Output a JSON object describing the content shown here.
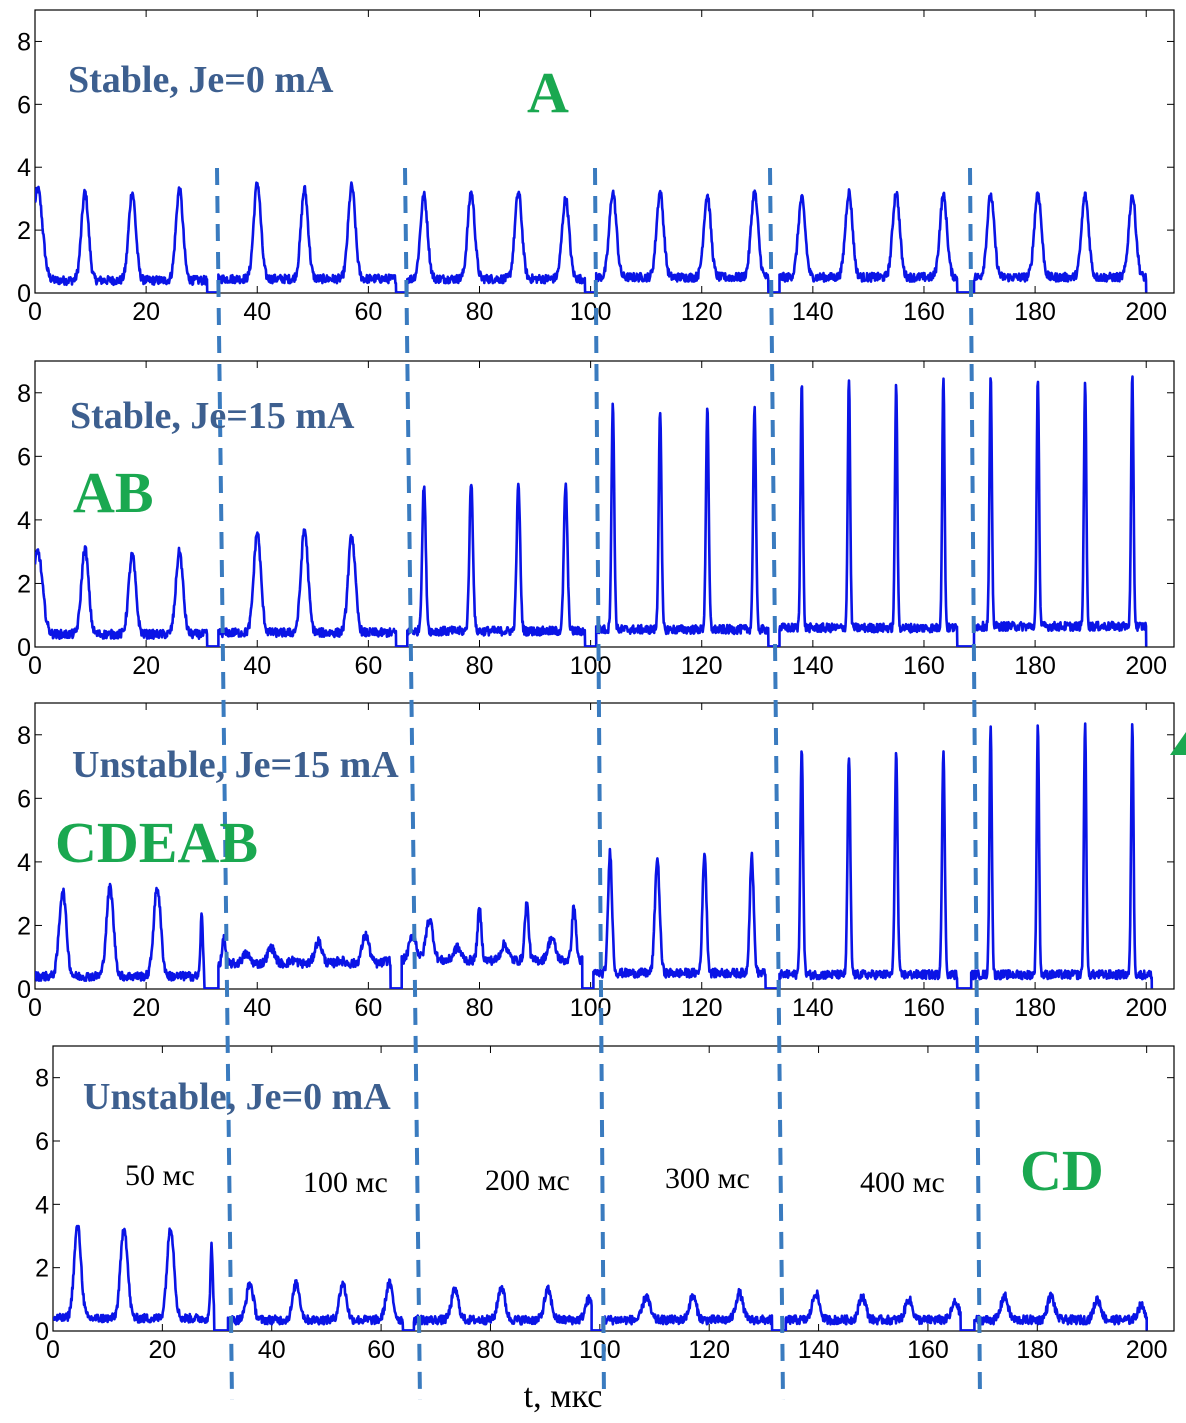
{
  "chart_data": {
    "type": "line",
    "xlabel": "t, мкс",
    "xlim": [
      0,
      205
    ],
    "ylim": [
      0,
      9
    ],
    "xticks": [
      0,
      20,
      40,
      60,
      80,
      100,
      120,
      140,
      160,
      180,
      200
    ],
    "yticks": [
      0,
      2,
      4,
      6,
      8
    ],
    "line_color": "#0a14e6",
    "divider_color": "#3a7bbf",
    "title_color": "#3d5f8f",
    "mark_color": "#1aa850",
    "segment_gaps": [
      32,
      66,
      100,
      133,
      168
    ],
    "time_labels": [
      "50 мс",
      "100 мс",
      "200 мс",
      "300 мс",
      "400 мс"
    ],
    "panels": [
      {
        "title": "Stable, Je=0 mA",
        "mark": "A",
        "series": [
          {
            "segments": [
              {
                "range": [
                  0,
                  31
                ],
                "baseline": 0.4,
                "spikes": [
                  {
                    "t": 0.5,
                    "h": 3.3,
                    "w": 1.2
                  },
                  {
                    "t": 9,
                    "h": 3.2
                  },
                  {
                    "t": 17.5,
                    "h": 3.2
                  },
                  {
                    "t": 26,
                    "h": 3.3
                  }
                ]
              },
              {
                "range": [
                  33,
                  65
                ],
                "baseline": 0.45,
                "spikes": [
                  {
                    "t": 40,
                    "h": 3.5
                  },
                  {
                    "t": 48.5,
                    "h": 3.3
                  },
                  {
                    "t": 57,
                    "h": 3.4
                  }
                ]
              },
              {
                "range": [
                  67,
                  99
                ],
                "baseline": 0.45,
                "spikes": [
                  {
                    "t": 70,
                    "h": 3.1
                  },
                  {
                    "t": 78.5,
                    "h": 3.2
                  },
                  {
                    "t": 87,
                    "h": 3.2
                  },
                  {
                    "t": 95.5,
                    "h": 3.0
                  }
                ]
              },
              {
                "range": [
                  101,
                  132
                ],
                "baseline": 0.5,
                "spikes": [
                  {
                    "t": 104,
                    "h": 3.2
                  },
                  {
                    "t": 112.5,
                    "h": 3.2
                  },
                  {
                    "t": 121,
                    "h": 3.1
                  },
                  {
                    "t": 129.5,
                    "h": 3.2
                  }
                ]
              },
              {
                "range": [
                  134,
                  166
                ],
                "baseline": 0.5,
                "spikes": [
                  {
                    "t": 138,
                    "h": 3.0
                  },
                  {
                    "t": 146.5,
                    "h": 3.2
                  },
                  {
                    "t": 155,
                    "h": 3.2
                  },
                  {
                    "t": 163.5,
                    "h": 3.1
                  }
                ]
              },
              {
                "range": [
                  169,
                  200
                ],
                "baseline": 0.5,
                "spikes": [
                  {
                    "t": 172,
                    "h": 3.1
                  },
                  {
                    "t": 180.5,
                    "h": 3.2
                  },
                  {
                    "t": 189,
                    "h": 3.1
                  },
                  {
                    "t": 197.5,
                    "h": 3.1
                  }
                ]
              }
            ]
          }
        ]
      },
      {
        "title": "Stable, Je=15 mA",
        "mark": "AB",
        "series": [
          {
            "segments": [
              {
                "range": [
                  0,
                  31
                ],
                "baseline": 0.4,
                "spikes": [
                  {
                    "t": 0.5,
                    "h": 3.0,
                    "w": 1.2
                  },
                  {
                    "t": 9,
                    "h": 3.1
                  },
                  {
                    "t": 17.5,
                    "h": 2.9
                  },
                  {
                    "t": 26,
                    "h": 3.0
                  }
                ]
              },
              {
                "range": [
                  33,
                  65
                ],
                "baseline": 0.45,
                "spikes": [
                  {
                    "t": 40,
                    "h": 3.6
                  },
                  {
                    "t": 48.5,
                    "h": 3.7
                  },
                  {
                    "t": 57,
                    "h": 3.5
                  }
                ]
              },
              {
                "range": [
                  67,
                  99
                ],
                "baseline": 0.5,
                "spikes": [
                  {
                    "t": 70,
                    "h": 5.1,
                    "w": 0.45
                  },
                  {
                    "t": 78.5,
                    "h": 5.2,
                    "w": 0.45
                  },
                  {
                    "t": 87,
                    "h": 5.1,
                    "w": 0.45
                  },
                  {
                    "t": 95.5,
                    "h": 5.1,
                    "w": 0.45
                  }
                ]
              },
              {
                "range": [
                  101,
                  132
                ],
                "baseline": 0.55,
                "spikes": [
                  {
                    "t": 104,
                    "h": 7.6,
                    "w": 0.35
                  },
                  {
                    "t": 112.5,
                    "h": 7.5,
                    "w": 0.35
                  },
                  {
                    "t": 121,
                    "h": 7.5,
                    "w": 0.35
                  },
                  {
                    "t": 129.5,
                    "h": 7.6,
                    "w": 0.35
                  }
                ]
              },
              {
                "range": [
                  134,
                  166
                ],
                "baseline": 0.6,
                "spikes": [
                  {
                    "t": 138,
                    "h": 8.4,
                    "w": 0.3
                  },
                  {
                    "t": 146.5,
                    "h": 8.5,
                    "w": 0.3
                  },
                  {
                    "t": 155,
                    "h": 8.3,
                    "w": 0.3
                  },
                  {
                    "t": 163.5,
                    "h": 8.5,
                    "w": 0.3
                  }
                ]
              },
              {
                "range": [
                  169,
                  200
                ],
                "baseline": 0.65,
                "spikes": [
                  {
                    "t": 172,
                    "h": 8.5,
                    "w": 0.3
                  },
                  {
                    "t": 180.5,
                    "h": 8.5,
                    "w": 0.3
                  },
                  {
                    "t": 189,
                    "h": 8.4,
                    "w": 0.3
                  },
                  {
                    "t": 197.5,
                    "h": 8.5,
                    "w": 0.3
                  }
                ]
              }
            ]
          }
        ]
      },
      {
        "title": "Unstable, Je=15 mA",
        "mark": "CDEAB",
        "series": [
          {
            "segments": [
              {
                "range": [
                  0,
                  30.5
                ],
                "baseline": 0.4,
                "spikes": [
                  {
                    "t": 5,
                    "h": 3.1
                  },
                  {
                    "t": 13.5,
                    "h": 3.2
                  },
                  {
                    "t": 22,
                    "h": 3.2
                  },
                  {
                    "t": 30,
                    "h": 2.3,
                    "w": 0.3
                  }
                ]
              },
              {
                "range": [
                  33,
                  64
                ],
                "baseline": 0.8,
                "spikes": [
                  {
                    "t": 34,
                    "h": 1.6,
                    "w": 0.4
                  },
                  {
                    "t": 38,
                    "h": 1.1
                  },
                  {
                    "t": 42.5,
                    "h": 1.3
                  },
                  {
                    "t": 46.5,
                    "h": 0.9
                  },
                  {
                    "t": 51,
                    "h": 1.5
                  },
                  {
                    "t": 55,
                    "h": 0.9
                  },
                  {
                    "t": 59.5,
                    "h": 1.7
                  },
                  {
                    "t": 63.5,
                    "h": 0.9
                  }
                ]
              },
              {
                "range": [
                  66,
                  98.5
                ],
                "baseline": 0.9,
                "spikes": [
                  {
                    "t": 68,
                    "h": 1.7
                  },
                  {
                    "t": 71,
                    "h": 2.2
                  },
                  {
                    "t": 76,
                    "h": 1.3
                  },
                  {
                    "t": 80,
                    "h": 2.5,
                    "w": 0.5
                  },
                  {
                    "t": 84.5,
                    "h": 1.4
                  },
                  {
                    "t": 88.5,
                    "h": 2.7,
                    "w": 0.5
                  },
                  {
                    "t": 93,
                    "h": 1.6
                  },
                  {
                    "t": 97,
                    "h": 2.6,
                    "w": 0.5
                  }
                ]
              },
              {
                "range": [
                  100.5,
                  131.5
                ],
                "baseline": 0.5,
                "spikes": [
                  {
                    "t": 103.5,
                    "h": 4.3,
                    "w": 0.5
                  },
                  {
                    "t": 112,
                    "h": 4.1,
                    "w": 0.6
                  },
                  {
                    "t": 120.5,
                    "h": 4.3,
                    "w": 0.5
                  },
                  {
                    "t": 129,
                    "h": 4.2,
                    "w": 0.5
                  }
                ]
              },
              {
                "range": [
                  134,
                  166
                ],
                "baseline": 0.45,
                "spikes": [
                  {
                    "t": 138,
                    "h": 7.5,
                    "w": 0.35
                  },
                  {
                    "t": 146.5,
                    "h": 7.3,
                    "w": 0.35
                  },
                  {
                    "t": 155,
                    "h": 7.4,
                    "w": 0.35
                  },
                  {
                    "t": 163.5,
                    "h": 7.4,
                    "w": 0.35
                  }
                ]
              },
              {
                "range": [
                  168.5,
                  201
                ],
                "baseline": 0.45,
                "spikes": [
                  {
                    "t": 172,
                    "h": 8.4,
                    "w": 0.3
                  },
                  {
                    "t": 180.5,
                    "h": 8.3,
                    "w": 0.3
                  },
                  {
                    "t": 189,
                    "h": 8.4,
                    "w": 0.3
                  },
                  {
                    "t": 197.5,
                    "h": 8.4,
                    "w": 0.3
                  }
                ]
              }
            ]
          }
        ]
      },
      {
        "title": "Unstable, Je=0 mA",
        "mark": "CD",
        "series": [
          {
            "segments": [
              {
                "range": [
                  0,
                  29.5
                ],
                "baseline": 0.4,
                "spikes": [
                  {
                    "t": 4.5,
                    "h": 3.3
                  },
                  {
                    "t": 13,
                    "h": 3.3
                  },
                  {
                    "t": 21.5,
                    "h": 3.3
                  },
                  {
                    "t": 29,
                    "h": 2.7,
                    "w": 0.3
                  }
                ]
              },
              {
                "range": [
                  32,
                  64
                ],
                "baseline": 0.35,
                "spikes": [
                  {
                    "t": 36,
                    "h": 1.5
                  },
                  {
                    "t": 44.5,
                    "h": 1.5
                  },
                  {
                    "t": 53,
                    "h": 1.5
                  },
                  {
                    "t": 61.5,
                    "h": 1.5
                  }
                ]
              },
              {
                "range": [
                  66,
                  98.5
                ],
                "baseline": 0.35,
                "spikes": [
                  {
                    "t": 73.5,
                    "h": 1.3
                  },
                  {
                    "t": 82,
                    "h": 1.4
                  },
                  {
                    "t": 90.5,
                    "h": 1.3
                  },
                  {
                    "t": 98,
                    "h": 1.0
                  }
                ]
              },
              {
                "range": [
                  100.5,
                  131.5
                ],
                "baseline": 0.35,
                "spikes": [
                  {
                    "t": 108.5,
                    "h": 1.1
                  },
                  {
                    "t": 117,
                    "h": 1.1
                  },
                  {
                    "t": 125.5,
                    "h": 1.2
                  }
                ]
              },
              {
                "range": [
                  134,
                  166
                ],
                "baseline": 0.35,
                "spikes": [
                  {
                    "t": 139.5,
                    "h": 1.2
                  },
                  {
                    "t": 148,
                    "h": 1.1
                  },
                  {
                    "t": 156.5,
                    "h": 1.0
                  },
                  {
                    "t": 165,
                    "h": 0.9
                  }
                ]
              },
              {
                "range": [
                  168.5,
                  200
                ],
                "baseline": 0.35,
                "spikes": [
                  {
                    "t": 174,
                    "h": 1.1
                  },
                  {
                    "t": 182.5,
                    "h": 1.1
                  },
                  {
                    "t": 191,
                    "h": 1.0
                  },
                  {
                    "t": 199,
                    "h": 0.8
                  }
                ]
              }
            ]
          }
        ]
      }
    ]
  }
}
